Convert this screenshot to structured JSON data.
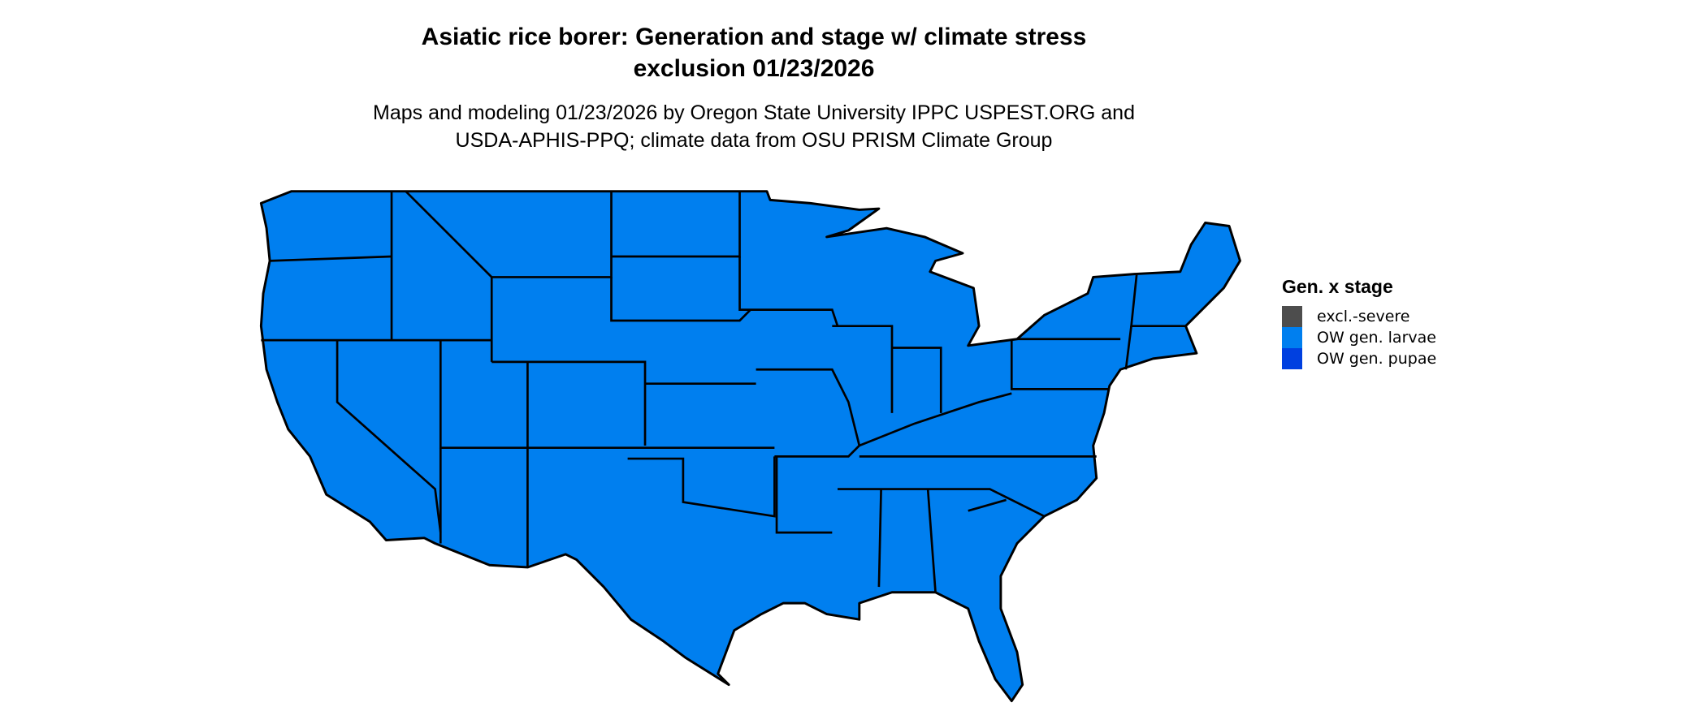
{
  "title_line1": "Asiatic rice borer: Generation and stage w/ climate stress",
  "title_line2": "exclusion 01/23/2026",
  "subtitle_line1": "Maps and modeling 01/23/2026 by Oregon State University IPPC USPEST.ORG and",
  "subtitle_line2": "USDA-APHIS-PPQ; climate data from OSU PRISM Climate Group",
  "map": {
    "region": "Contiguous United States",
    "fill_category": "OW gen. larvae",
    "fill_color": "#007fef",
    "border_color": "#000000"
  },
  "legend": {
    "title": "Gen. x stage",
    "items": [
      {
        "label": "excl.-severe",
        "color": "#4d4d4d"
      },
      {
        "label": "OW gen. larvae",
        "color": "#007fef"
      },
      {
        "label": "OW gen. pupae",
        "color": "#0040e0"
      }
    ]
  }
}
